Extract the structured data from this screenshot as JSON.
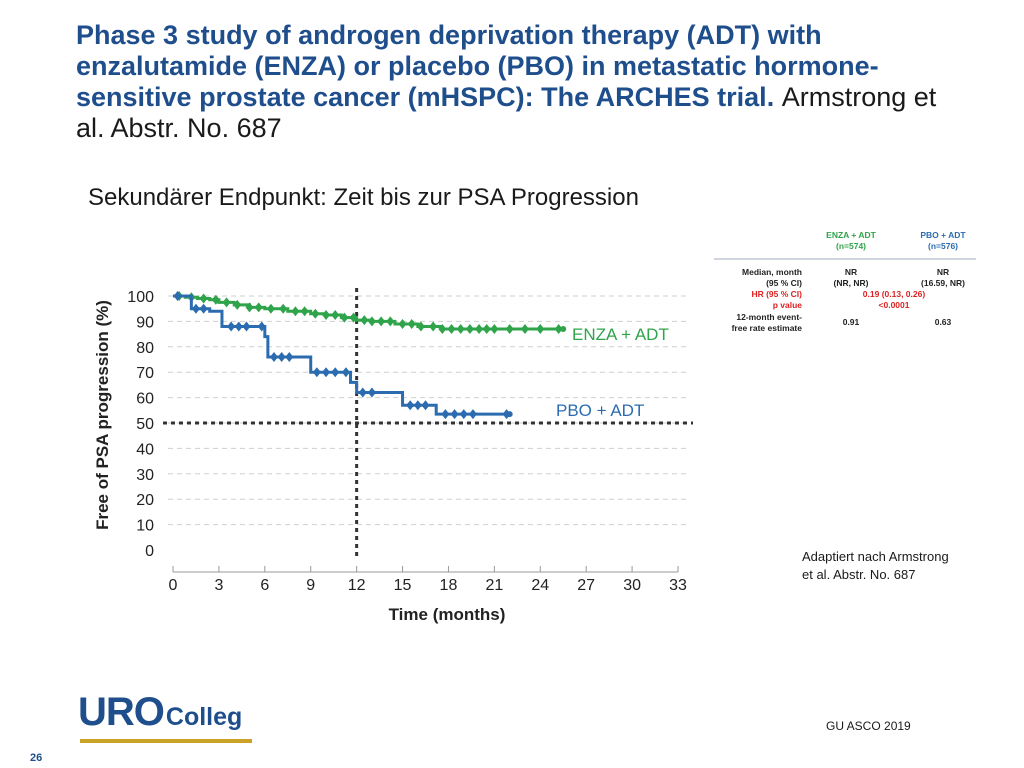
{
  "slide": {
    "title_bold": "Phase 3 study of androgen deprivation therapy (ADT) with enzalutamide (ENZA) or placebo (PBO) in metastatic hormone-sensitive prostate cancer (mHSPC): The ARCHES trial.",
    "title_author": "Armstrong et al. Abstr. No. 687",
    "subtitle": "Sekundärer Endpunkt: Zeit bis zur PSA Progression",
    "note_line1": "Adaptiert nach Armstrong",
    "note_line2": "et al. Abstr. No. 687",
    "conference": "GU ASCO 2019",
    "page_number": "26",
    "logo_uro": "URO",
    "logo_colleg": "Colleg"
  },
  "stats_table": {
    "col1_header_1": "ENZA + ADT",
    "col1_header_2": "(n=574)",
    "col2_header_1": "PBO + ADT",
    "col2_header_2": "(n=576)",
    "row_median_label_1": "Median, month",
    "row_median_label_2": "(95 % CI)",
    "row_hr_label": "HR (95 % CI)",
    "row_p_label": "p value",
    "row_12m_label_1": "12-month event-",
    "row_12m_label_2": "free rate estimate",
    "enza_median": "NR",
    "enza_median_ci": "(NR, NR)",
    "pbo_median": "NR",
    "pbo_median_ci": "(16.59, NR)",
    "hr_value": "0.19 (0.13, 0.26)",
    "p_value": "<0.0001",
    "enza_12m": "0.91",
    "pbo_12m": "0.63"
  },
  "chart_data": {
    "type": "line",
    "subtype": "kaplan-meier",
    "xlabel": "Time (months)",
    "ylabel": "Free of PSA progression (%)",
    "xlim": [
      0,
      33
    ],
    "ylim": [
      0,
      100
    ],
    "xticks": [
      0,
      3,
      6,
      9,
      12,
      15,
      18,
      21,
      24,
      27,
      30,
      33
    ],
    "yticks": [
      0,
      10,
      20,
      30,
      40,
      50,
      60,
      70,
      80,
      90,
      100
    ],
    "reference_lines": {
      "vertical_x": 12,
      "horizontal_y": 50
    },
    "series": [
      {
        "name": "ENZA + ADT",
        "color": "#2fa44a",
        "points": [
          [
            0,
            100
          ],
          [
            0.8,
            99.5
          ],
          [
            1.6,
            99
          ],
          [
            2.4,
            98.5
          ],
          [
            3,
            97.5
          ],
          [
            4,
            96.5
          ],
          [
            5,
            95.5
          ],
          [
            6,
            95
          ],
          [
            7.5,
            94
          ],
          [
            9,
            93
          ],
          [
            10,
            92.5
          ],
          [
            11,
            91.5
          ],
          [
            12,
            90.5
          ],
          [
            13,
            90
          ],
          [
            14.5,
            89
          ],
          [
            16,
            88
          ],
          [
            17.5,
            87
          ],
          [
            19,
            87
          ],
          [
            25.5,
            87
          ]
        ],
        "censor_x": [
          0.4,
          1.2,
          2,
          2.8,
          3.5,
          4.2,
          5,
          5.6,
          6.4,
          7.2,
          8,
          8.6,
          9.3,
          10,
          10.6,
          11.2,
          11.8,
          12.5,
          13,
          13.6,
          14.2,
          15,
          15.6,
          16.2,
          17,
          17.6,
          18.2,
          18.8,
          19.4,
          20,
          20.5,
          21,
          22,
          23,
          24,
          25.2
        ]
      },
      {
        "name": "PBO + ADT",
        "color": "#2b6cb0",
        "points": [
          [
            0,
            100
          ],
          [
            1.2,
            95
          ],
          [
            2.4,
            94
          ],
          [
            3.2,
            88
          ],
          [
            5.5,
            88
          ],
          [
            6,
            84
          ],
          [
            6.2,
            76
          ],
          [
            8.2,
            76
          ],
          [
            9,
            70
          ],
          [
            11,
            70
          ],
          [
            11.6,
            66
          ],
          [
            12,
            62
          ],
          [
            14.2,
            62
          ],
          [
            15,
            57
          ],
          [
            16.8,
            57
          ],
          [
            17.2,
            53.5
          ],
          [
            22,
            53.5
          ]
        ],
        "censor_x": [
          0.3,
          1.5,
          2,
          3.8,
          4.3,
          4.8,
          5.8,
          6.6,
          7.1,
          7.6,
          9.4,
          10,
          10.6,
          11.3,
          12.4,
          13,
          15.5,
          16,
          16.5,
          17.8,
          18.4,
          19,
          19.6,
          21.8
        ]
      }
    ],
    "series_labels": [
      "ENZA + ADT",
      "PBO + ADT"
    ]
  }
}
